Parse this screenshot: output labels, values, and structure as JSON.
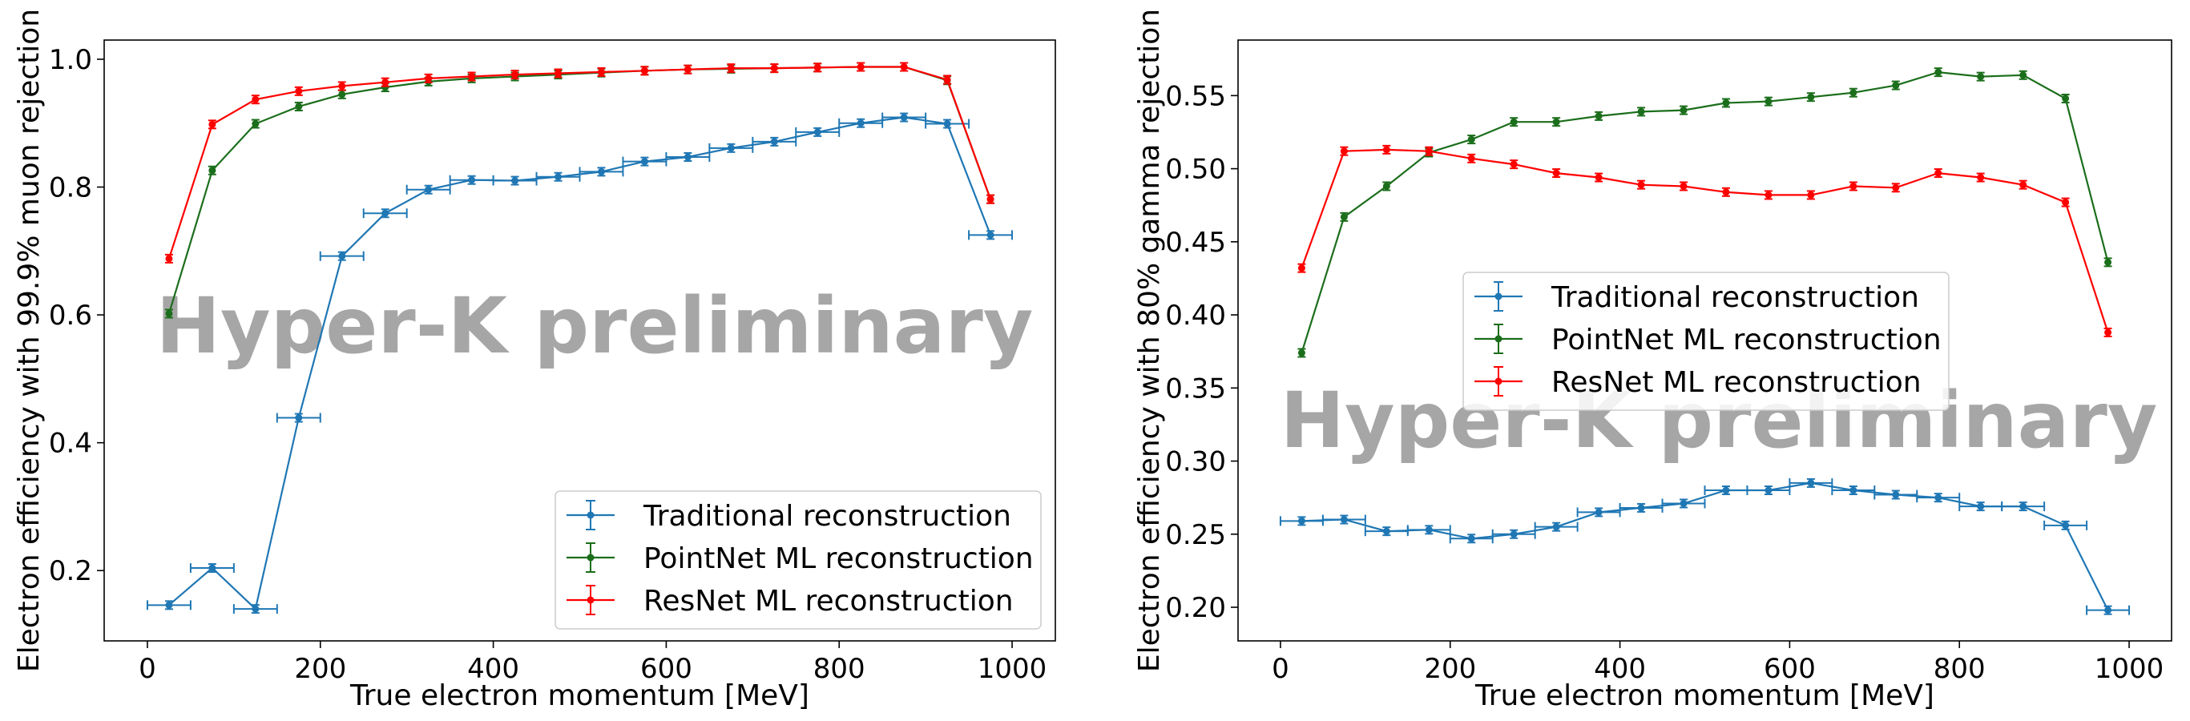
{
  "chart_data": [
    {
      "type": "line",
      "xlabel": "True electron momentum [MeV]",
      "ylabel": "Electron efficiency with 99.9% muon rejection",
      "xlim": [
        -50,
        1050
      ],
      "ylim": [
        0.09,
        1.03
      ],
      "xticks": [
        0,
        200,
        400,
        600,
        800,
        1000
      ],
      "xtick_labels": [
        "0",
        "200",
        "400",
        "600",
        "800",
        "1000"
      ],
      "yticks": [
        0.2,
        0.4,
        0.6,
        0.8,
        1.0
      ],
      "ytick_labels": [
        "0.2",
        "0.4",
        "0.6",
        "0.8",
        "1.0"
      ],
      "watermark": "Hyper-K preliminary",
      "legend_position": "lower-right",
      "series": [
        {
          "name": "Traditional reconstruction",
          "color": "#1f77b4",
          "x": [
            25,
            75,
            125,
            175,
            225,
            275,
            325,
            375,
            425,
            475,
            525,
            575,
            625,
            675,
            725,
            775,
            825,
            875,
            925,
            975
          ],
          "y": [
            0.146,
            0.204,
            0.14,
            0.439,
            0.692,
            0.759,
            0.796,
            0.811,
            0.81,
            0.816,
            0.824,
            0.84,
            0.847,
            0.861,
            0.871,
            0.886,
            0.9,
            0.909,
            0.899,
            0.725
          ],
          "xerr": 25
        },
        {
          "name": "PointNet ML reconstruction",
          "color": "#1b6e1b",
          "x": [
            25,
            75,
            125,
            175,
            225,
            275,
            325,
            375,
            425,
            475,
            525,
            575,
            625,
            675,
            725,
            775,
            825,
            875,
            925,
            975
          ],
          "y": [
            0.602,
            0.826,
            0.899,
            0.926,
            0.945,
            0.956,
            0.965,
            0.97,
            0.973,
            0.976,
            0.979,
            0.982,
            0.984,
            0.985,
            0.986,
            0.987,
            0.988,
            0.988,
            0.967,
            0.781
          ],
          "xerr": 0
        },
        {
          "name": "ResNet ML reconstruction",
          "color": "#ff0000",
          "x": [
            25,
            75,
            125,
            175,
            225,
            275,
            325,
            375,
            425,
            475,
            525,
            575,
            625,
            675,
            725,
            775,
            825,
            875,
            925,
            975
          ],
          "y": [
            0.688,
            0.898,
            0.937,
            0.95,
            0.958,
            0.964,
            0.97,
            0.973,
            0.976,
            0.978,
            0.98,
            0.982,
            0.984,
            0.986,
            0.986,
            0.987,
            0.988,
            0.988,
            0.968,
            0.781
          ],
          "xerr": 0
        }
      ]
    },
    {
      "type": "line",
      "xlabel": "True electron momentum [MeV]",
      "ylabel": "Electron efficiency with 80% gamma rejection",
      "xlim": [
        -50,
        1050
      ],
      "ylim": [
        0.177,
        0.588
      ],
      "xticks": [
        0,
        200,
        400,
        600,
        800,
        1000
      ],
      "xtick_labels": [
        "0",
        "200",
        "400",
        "600",
        "800",
        "1000"
      ],
      "yticks": [
        0.2,
        0.25,
        0.3,
        0.35,
        0.4,
        0.45,
        0.5,
        0.55
      ],
      "ytick_labels": [
        "0.20",
        "0.25",
        "0.30",
        "0.35",
        "0.40",
        "0.45",
        "0.50",
        "0.55"
      ],
      "watermark": "Hyper-K preliminary",
      "legend_position": "center",
      "series": [
        {
          "name": "Traditional reconstruction",
          "color": "#1f77b4",
          "x": [
            25,
            75,
            125,
            175,
            225,
            275,
            325,
            375,
            425,
            475,
            525,
            575,
            625,
            675,
            725,
            775,
            825,
            875,
            925,
            975
          ],
          "y": [
            0.259,
            0.26,
            0.252,
            0.253,
            0.247,
            0.25,
            0.255,
            0.265,
            0.268,
            0.271,
            0.28,
            0.28,
            0.285,
            0.28,
            0.277,
            0.275,
            0.269,
            0.269,
            0.256,
            0.198
          ],
          "xerr": 25
        },
        {
          "name": "PointNet ML reconstruction",
          "color": "#1b6e1b",
          "x": [
            25,
            75,
            125,
            175,
            225,
            275,
            325,
            375,
            425,
            475,
            525,
            575,
            625,
            675,
            725,
            775,
            825,
            875,
            925,
            975
          ],
          "y": [
            0.374,
            0.467,
            0.488,
            0.511,
            0.52,
            0.532,
            0.532,
            0.536,
            0.539,
            0.54,
            0.545,
            0.546,
            0.549,
            0.552,
            0.557,
            0.566,
            0.563,
            0.564,
            0.548,
            0.436
          ],
          "xerr": 0
        },
        {
          "name": "ResNet ML reconstruction",
          "color": "#ff0000",
          "x": [
            25,
            75,
            125,
            175,
            225,
            275,
            325,
            375,
            425,
            475,
            525,
            575,
            625,
            675,
            725,
            775,
            825,
            875,
            925,
            975
          ],
          "y": [
            0.432,
            0.512,
            0.513,
            0.512,
            0.507,
            0.503,
            0.497,
            0.494,
            0.489,
            0.488,
            0.484,
            0.482,
            0.482,
            0.488,
            0.487,
            0.497,
            0.494,
            0.489,
            0.477,
            0.388
          ],
          "xerr": 0
        }
      ]
    }
  ]
}
